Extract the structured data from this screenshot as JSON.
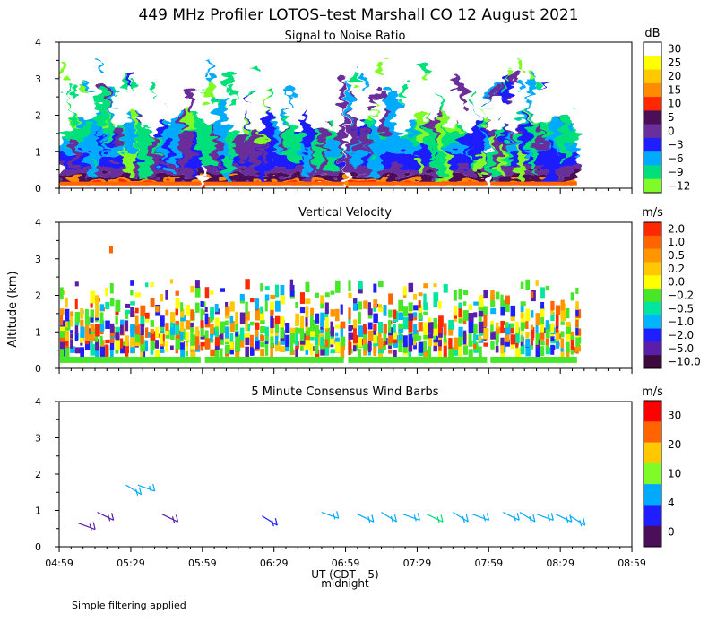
{
  "title": "449 MHz Profiler LOTOS–test Marshall CO 12 August 2021",
  "footer_note": "Simple filtering applied",
  "x_axis": {
    "ticks": [
      "04:59",
      "05:29",
      "05:59",
      "06:29",
      "06:59",
      "07:29",
      "07:59",
      "08:29",
      "08:59"
    ],
    "label": "UT  (CDT – 5)",
    "sublabel": "midnight"
  },
  "y_label": "Altitude (km)",
  "chart_data": [
    {
      "type": "heatmap",
      "title": "Signal to Noise Ratio",
      "unit": "dB",
      "x_range_ut_hours": [
        4.983,
        8.983
      ],
      "ylim": [
        0,
        4
      ],
      "yticks": [
        "0",
        "1",
        "2",
        "3",
        "4"
      ],
      "colorbar": {
        "labels": [
          "30",
          "25",
          "20",
          "15",
          "10",
          "5",
          "0",
          "−3",
          "−6",
          "−9",
          "−12"
        ],
        "colors": [
          "#ffffff",
          "#ffff00",
          "#ffc800",
          "#ff8c00",
          "#ff2800",
          "#4b0f5a",
          "#6a2f9a",
          "#1e1eff",
          "#00aaff",
          "#00e07a",
          "#7ffc28"
        ]
      },
      "data_gaps_ut": [
        "05:59",
        "06:59",
        "07:59"
      ]
    },
    {
      "type": "heatmap",
      "title": "Vertical Velocity",
      "unit": "m/s",
      "x_range_ut_hours": [
        4.983,
        8.983
      ],
      "ylim": [
        0,
        4
      ],
      "yticks": [
        "0",
        "1",
        "2",
        "3",
        "4"
      ],
      "colorbar": {
        "labels": [
          "2.0",
          "1.0",
          "0.5",
          "0.2",
          "0.0",
          "−0.2",
          "−0.5",
          "−1.0",
          "−2.0",
          "−5.0",
          "−10.0"
        ],
        "colors": [
          "#ff2800",
          "#ff6400",
          "#ff9600",
          "#ffc800",
          "#ffff00",
          "#46e628",
          "#00e6a0",
          "#00b4ff",
          "#1e1eff",
          "#5a1eaa",
          "#3c0a3c"
        ]
      }
    },
    {
      "type": "scatter",
      "title": "5 Minute Consensus Wind Barbs",
      "unit": "m/s",
      "x_range_ut_hours": [
        4.983,
        8.983
      ],
      "ylim": [
        0,
        4
      ],
      "yticks": [
        "0",
        "1",
        "2",
        "3",
        "4"
      ],
      "colorbar": {
        "labels": [
          "30",
          "20",
          "10",
          "4",
          "0"
        ],
        "colors": [
          "#ff0000",
          "#ff6400",
          "#ffc800",
          "#7ffc28",
          "#00aaff",
          "#1e1eff",
          "#4b0f5a"
        ]
      },
      "barbs": [
        {
          "t": "05:07",
          "alt": 0.65,
          "color": "#5a1eaa"
        },
        {
          "t": "05:15",
          "alt": 0.95,
          "color": "#5a1eaa"
        },
        {
          "t": "05:27",
          "alt": 1.7,
          "color": "#00aaff"
        },
        {
          "t": "05:32",
          "alt": 1.7,
          "color": "#00aaff"
        },
        {
          "t": "05:42",
          "alt": 0.9,
          "color": "#5a1eaa"
        },
        {
          "t": "06:24",
          "alt": 0.85,
          "color": "#1e1eff"
        },
        {
          "t": "06:49",
          "alt": 0.95,
          "color": "#00aaff"
        },
        {
          "t": "07:04",
          "alt": 0.9,
          "color": "#00aaff"
        },
        {
          "t": "07:14",
          "alt": 0.95,
          "color": "#00aaff"
        },
        {
          "t": "07:23",
          "alt": 0.9,
          "color": "#00aaff"
        },
        {
          "t": "07:33",
          "alt": 0.9,
          "color": "#00e07a"
        },
        {
          "t": "07:44",
          "alt": 0.95,
          "color": "#00aaff"
        },
        {
          "t": "07:52",
          "alt": 0.9,
          "color": "#00aaff"
        },
        {
          "t": "08:05",
          "alt": 0.95,
          "color": "#00aaff"
        },
        {
          "t": "08:12",
          "alt": 0.95,
          "color": "#00aaff"
        },
        {
          "t": "08:19",
          "alt": 0.9,
          "color": "#00aaff"
        },
        {
          "t": "08:27",
          "alt": 0.9,
          "color": "#00aaff"
        },
        {
          "t": "08:33",
          "alt": 0.85,
          "color": "#00aaff"
        }
      ]
    }
  ]
}
